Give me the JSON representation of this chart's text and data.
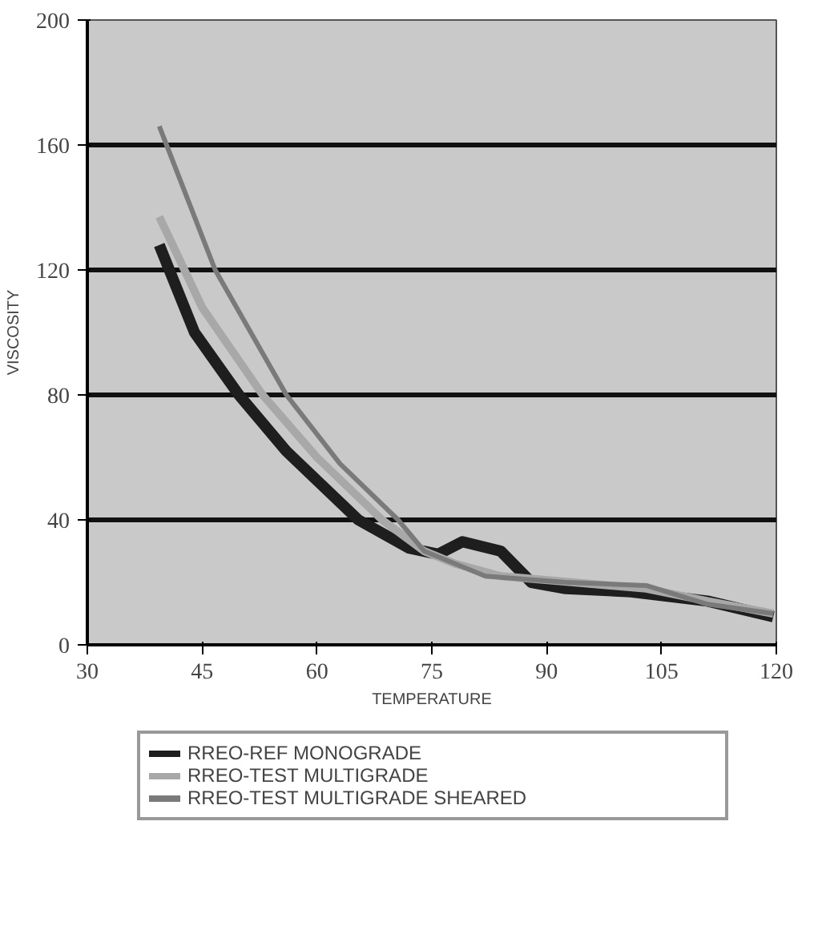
{
  "chart_data": {
    "type": "line",
    "xlabel": "TEMPERATURE",
    "ylabel": "VISCOSITY",
    "xlim": [
      30,
      120
    ],
    "xticks": [
      30,
      45,
      60,
      75,
      90,
      105,
      120
    ],
    "ylim": [
      0,
      200
    ],
    "yticks": [
      0,
      40,
      80,
      120,
      160,
      200
    ],
    "grid": "y",
    "legend": "bottom",
    "line_style": "solid",
    "series": [
      {
        "name": "RREO-REF MONOGRADE",
        "color": "#1e1e1e",
        "x": [
          39.4,
          44,
          49.8,
          56,
          65.4,
          72,
          75.8,
          79,
          84,
          88,
          92.5,
          101,
          111,
          119.6
        ],
        "values": [
          128,
          100,
          80,
          62,
          40,
          31,
          29,
          33,
          30,
          20,
          18,
          17,
          14,
          9
        ]
      },
      {
        "name": "RREO-TEST MULTIGRADE",
        "color": "#a8a8a8",
        "x": [
          39.4,
          45,
          52.9,
          60,
          68.5,
          74,
          78,
          84,
          93.5,
          103,
          111,
          119.6
        ],
        "values": [
          137,
          108,
          80,
          60,
          40,
          30,
          26,
          22,
          20,
          18,
          14,
          10
        ]
      },
      {
        "name": "RREO-TEST MULTIGRADE SHEARED",
        "color": "#7a7a7a",
        "x": [
          39.4,
          46.7,
          56,
          63,
          70.6,
          74,
          82,
          92.5,
          103,
          111,
          119.6
        ],
        "values": [
          166,
          120,
          80,
          58,
          40,
          30,
          22,
          20,
          19,
          13,
          10
        ]
      }
    ]
  }
}
